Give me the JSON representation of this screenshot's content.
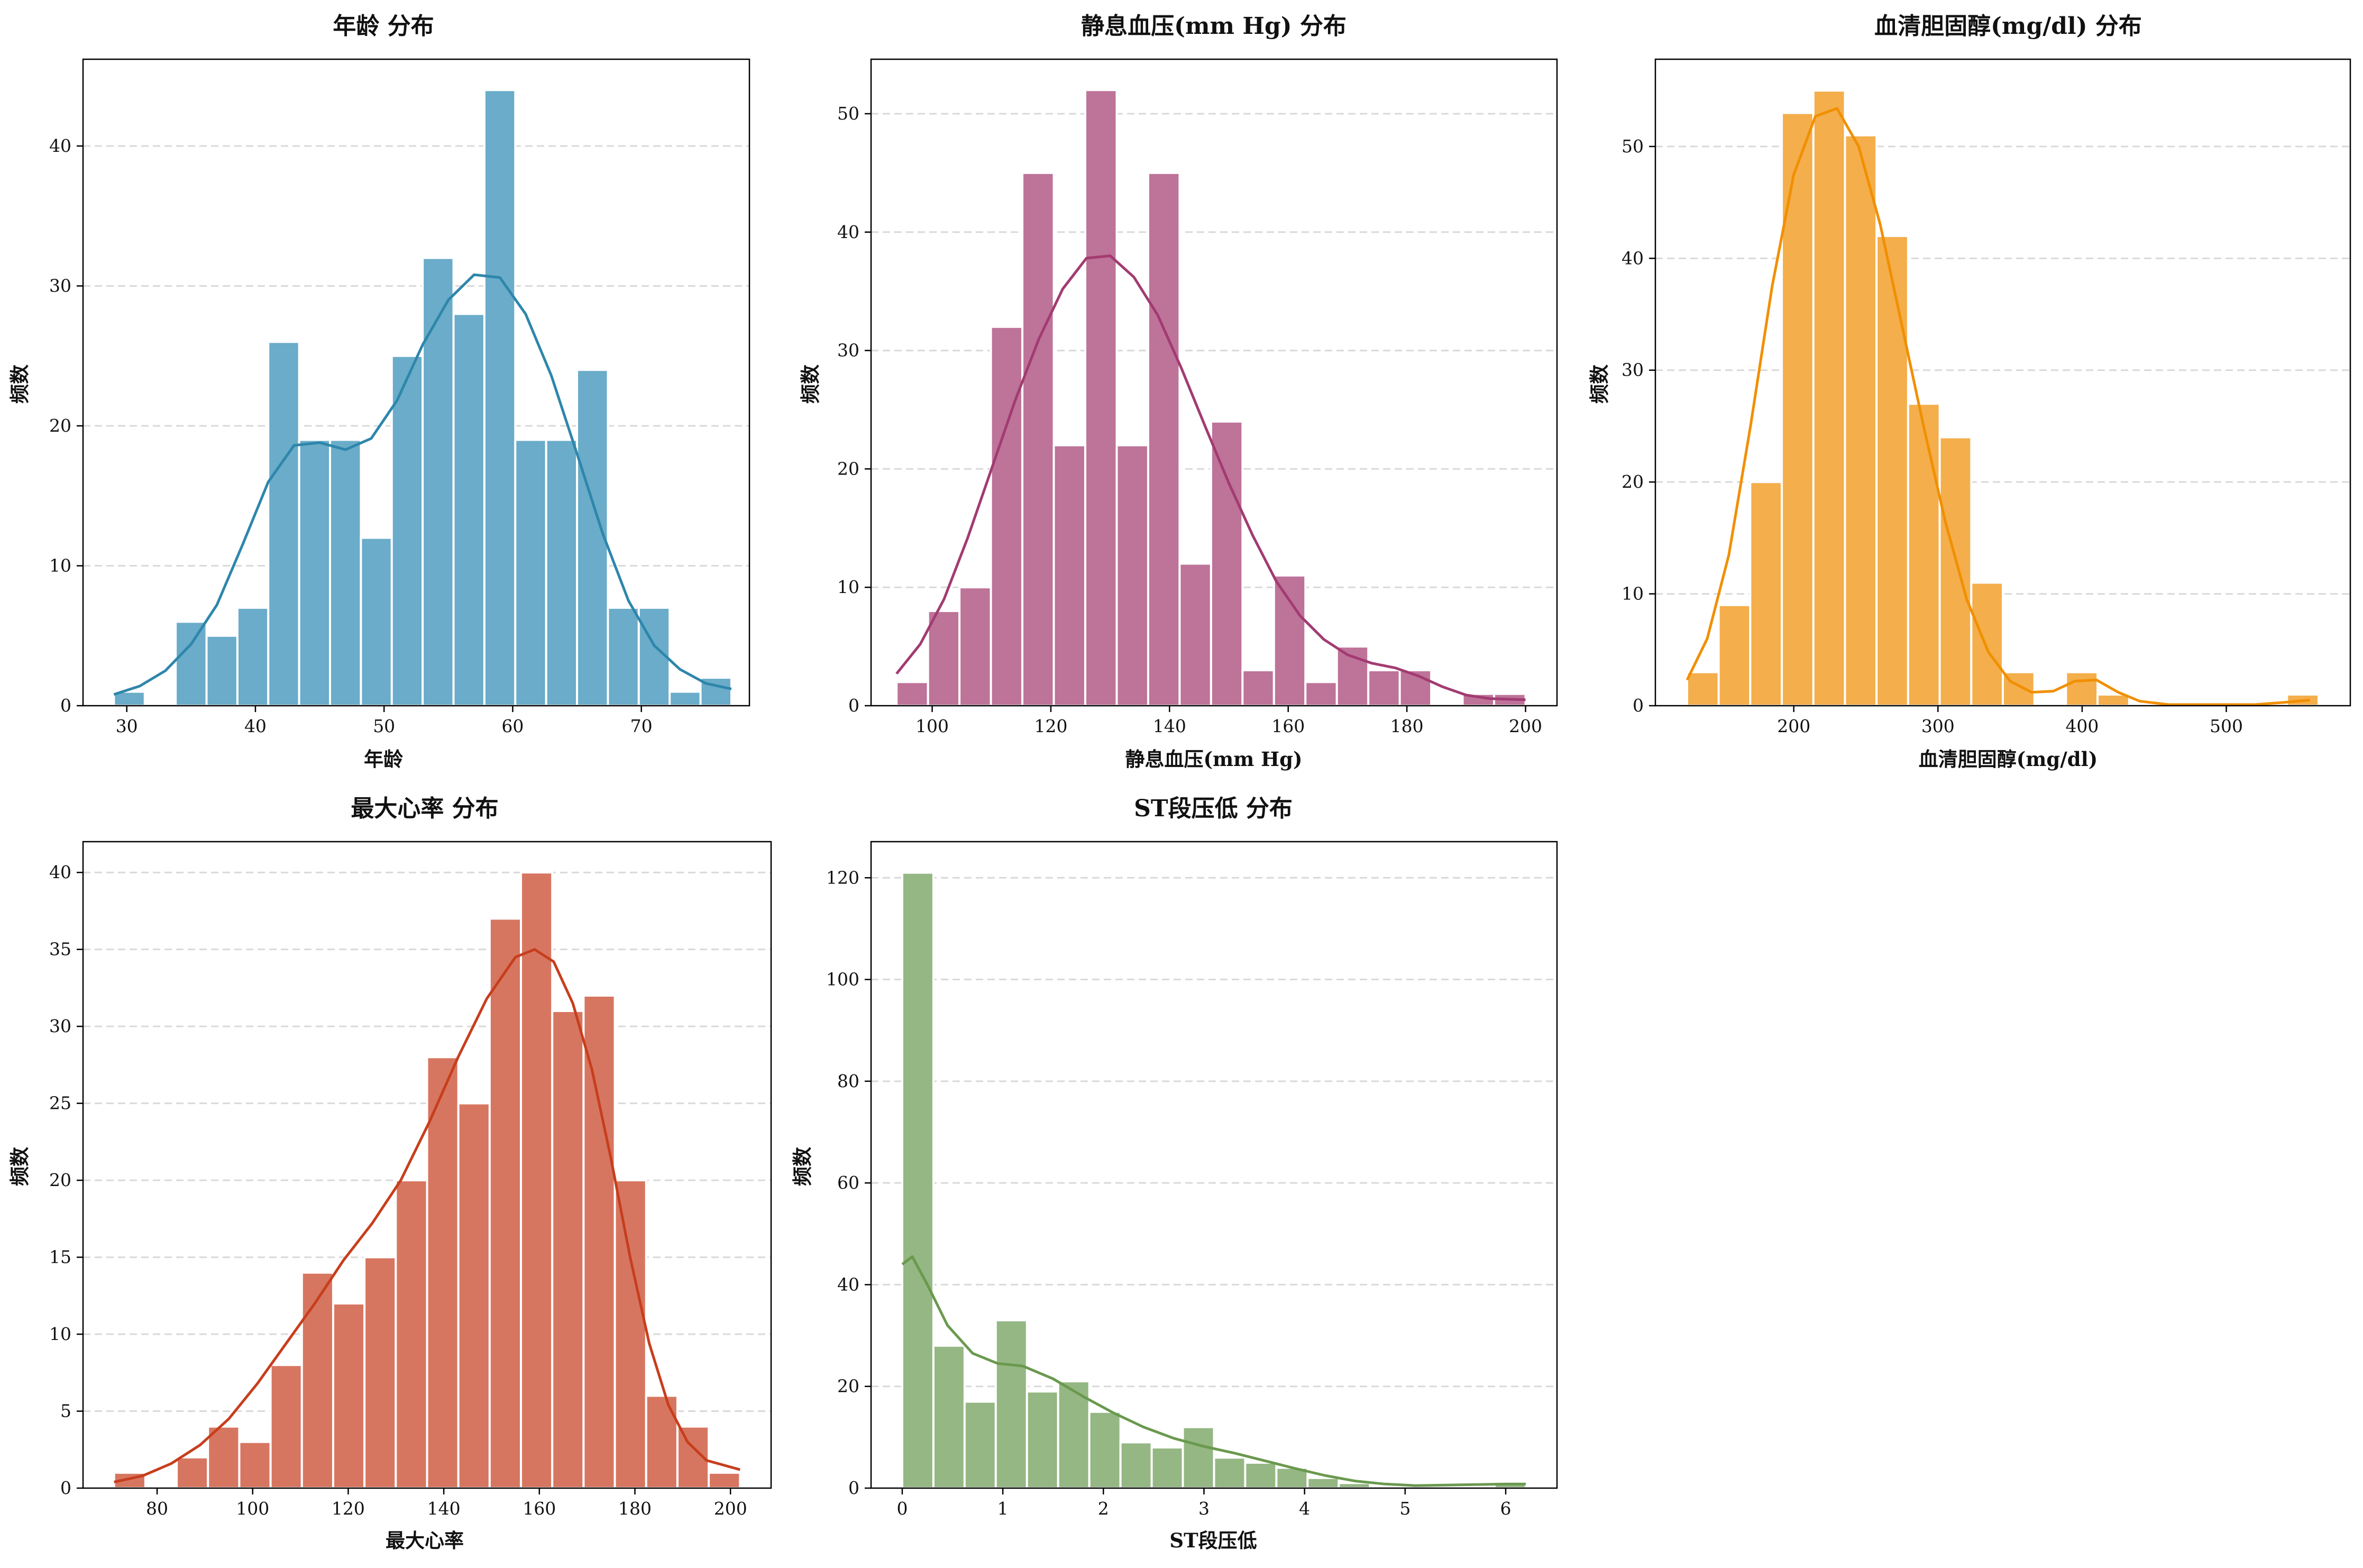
{
  "chart_data": [
    {
      "type": "histogram",
      "title": "年龄 分布",
      "xlabel": "年龄",
      "ylabel": "频数",
      "color": "#2E86AB",
      "bar_color": "#6AACC9",
      "xlim": [
        26.6,
        78.4
      ],
      "ylim": [
        0,
        46.2
      ],
      "xticks": [
        30,
        40,
        50,
        60,
        70
      ],
      "xtick_labels": [
        "30",
        "40",
        "50",
        "60",
        "70"
      ],
      "yticks": [
        0,
        10,
        20,
        30,
        40
      ],
      "ytick_labels": [
        "0",
        "10",
        "20",
        "30",
        "40"
      ],
      "bin_start": 29,
      "bin_width": 2.4,
      "counts": [
        1,
        0,
        6,
        5,
        7,
        26,
        19,
        19,
        12,
        25,
        32,
        28,
        44,
        19,
        19,
        24,
        7,
        7,
        1,
        2
      ],
      "kde": {
        "x": [
          29,
          31,
          33,
          35,
          37,
          39,
          41,
          43,
          45,
          47,
          49,
          51,
          53,
          55,
          57,
          59,
          61,
          63,
          65,
          67,
          69,
          71,
          73,
          75,
          77
        ],
        "y": [
          0.8,
          1.4,
          2.5,
          4.4,
          7.2,
          11.5,
          16.0,
          18.6,
          18.8,
          18.3,
          19.1,
          21.8,
          25.8,
          29.0,
          30.8,
          30.6,
          28.0,
          23.6,
          18.0,
          12.3,
          7.5,
          4.3,
          2.6,
          1.6,
          1.2
        ]
      }
    },
    {
      "type": "histogram",
      "title": "静息血压(mm Hg) 分布",
      "xlabel": "静息血压(mm Hg)",
      "ylabel": "频数",
      "color": "#A23B72",
      "bar_color": "#BE7399",
      "xlim": [
        89.7,
        205.3
      ],
      "ylim": [
        0,
        54.6
      ],
      "xticks": [
        100,
        120,
        140,
        160,
        180,
        200
      ],
      "xtick_labels": [
        "100",
        "120",
        "140",
        "160",
        "180",
        "200"
      ],
      "yticks": [
        0,
        10,
        20,
        30,
        40,
        50
      ],
      "ytick_labels": [
        "0",
        "10",
        "20",
        "30",
        "40",
        "50"
      ],
      "bin_start": 94,
      "bin_width": 5.3,
      "counts": [
        2,
        8,
        10,
        32,
        45,
        22,
        52,
        22,
        45,
        12,
        24,
        3,
        11,
        2,
        5,
        3,
        3,
        0,
        1,
        1
      ],
      "kde": {
        "x": [
          94,
          98,
          102,
          106,
          110,
          114,
          118,
          122,
          126,
          130,
          134,
          138,
          142,
          146,
          150,
          154,
          158,
          162,
          166,
          170,
          174,
          178,
          182,
          186,
          190,
          194,
          200
        ],
        "y": [
          2.7,
          5.2,
          9.0,
          14.2,
          20.0,
          25.8,
          31.0,
          35.2,
          37.8,
          38.0,
          36.2,
          33.0,
          28.5,
          23.6,
          18.8,
          14.4,
          10.5,
          7.6,
          5.6,
          4.3,
          3.6,
          3.2,
          2.5,
          1.6,
          0.9,
          0.6,
          0.5
        ]
      }
    },
    {
      "type": "histogram",
      "title": "血清胆固醇(mg/dl) 分布",
      "xlabel": "血清胆固醇(mg/dl)",
      "ylabel": "频数",
      "color": "#F18F01",
      "bar_color": "#F4AE4B",
      "xlim": [
        104,
        586
      ],
      "ylim": [
        0,
        57.8
      ],
      "xticks": [
        200,
        300,
        400,
        500
      ],
      "xtick_labels": [
        "200",
        "300",
        "400",
        "500"
      ],
      "yticks": [
        0,
        10,
        20,
        30,
        40,
        50
      ],
      "ytick_labels": [
        "0",
        "10",
        "20",
        "30",
        "40",
        "50"
      ],
      "bin_start": 126,
      "bin_width": 21.9,
      "counts": [
        3,
        9,
        20,
        53,
        55,
        51,
        42,
        27,
        24,
        11,
        3,
        0,
        3,
        1,
        0,
        0,
        0,
        0,
        0,
        1
      ],
      "kde": {
        "x": [
          126,
          140,
          155,
          170,
          185,
          200,
          215,
          230,
          245,
          260,
          275,
          290,
          305,
          320,
          335,
          350,
          365,
          380,
          395,
          410,
          425,
          440,
          460,
          480,
          500,
          520,
          540,
          558
        ],
        "y": [
          2.3,
          6.0,
          13.5,
          25.0,
          37.5,
          47.5,
          52.7,
          53.4,
          50.0,
          43.0,
          34.0,
          25.0,
          16.5,
          9.5,
          4.8,
          2.2,
          1.2,
          1.3,
          2.2,
          2.3,
          1.2,
          0.4,
          0.1,
          0.1,
          0.1,
          0.1,
          0.3,
          0.5
        ]
      }
    },
    {
      "type": "histogram",
      "title": "最大心率 分布",
      "xlabel": "最大心率",
      "ylabel": "频数",
      "color": "#C73E1D",
      "bar_color": "#D77660",
      "xlim": [
        64.5,
        208.5
      ],
      "ylim": [
        0,
        42
      ],
      "xticks": [
        80,
        100,
        120,
        140,
        160,
        180,
        200
      ],
      "xtick_labels": [
        "80",
        "100",
        "120",
        "140",
        "160",
        "180",
        "200"
      ],
      "yticks": [
        0,
        5,
        10,
        15,
        20,
        25,
        30,
        35,
        40
      ],
      "ytick_labels": [
        "0",
        "5",
        "10",
        "15",
        "20",
        "25",
        "30",
        "35",
        "40"
      ],
      "bin_start": 71,
      "bin_width": 6.55,
      "counts": [
        1,
        0,
        2,
        4,
        3,
        8,
        14,
        12,
        15,
        20,
        28,
        25,
        37,
        40,
        31,
        32,
        20,
        6,
        4,
        1
      ],
      "kde": {
        "x": [
          71,
          77,
          83,
          89,
          95,
          101,
          107,
          113,
          119,
          125,
          131,
          137,
          143,
          149,
          155,
          159,
          163,
          167,
          171,
          175,
          179,
          183,
          187,
          191,
          195,
          202
        ],
        "y": [
          0.4,
          0.8,
          1.6,
          2.8,
          4.5,
          6.8,
          9.4,
          12.0,
          14.8,
          17.2,
          20.0,
          23.8,
          28.0,
          31.8,
          34.5,
          35.0,
          34.2,
          31.5,
          27.2,
          21.4,
          15.0,
          9.4,
          5.4,
          3.0,
          1.8,
          1.2
        ]
      }
    },
    {
      "type": "histogram",
      "title": "ST段压低 分布",
      "xlabel": "ST段压低",
      "ylabel": "频数",
      "color": "#6A994E",
      "bar_color": "#94B783",
      "xlim": [
        -0.31,
        6.51
      ],
      "ylim": [
        0,
        127.1
      ],
      "xticks": [
        0,
        1,
        2,
        3,
        4,
        5,
        6
      ],
      "xtick_labels": [
        "0",
        "1",
        "2",
        "3",
        "4",
        "5",
        "6"
      ],
      "yticks": [
        0,
        20,
        40,
        60,
        80,
        100,
        120
      ],
      "ytick_labels": [
        "0",
        "20",
        "40",
        "60",
        "80",
        "100",
        "120"
      ],
      "bin_start": 0,
      "bin_width": 0.31,
      "counts": [
        121,
        28,
        17,
        33,
        19,
        21,
        15,
        9,
        8,
        12,
        6,
        5,
        4,
        2,
        1,
        0,
        0,
        0,
        0,
        1
      ],
      "kde": {
        "x": [
          0,
          0.1,
          0.25,
          0.45,
          0.7,
          0.95,
          1.2,
          1.5,
          1.8,
          2.1,
          2.4,
          2.7,
          3.0,
          3.3,
          3.6,
          3.9,
          4.2,
          4.5,
          4.8,
          5.1,
          5.4,
          5.7,
          6.0,
          6.2
        ],
        "y": [
          44,
          45.5,
          40,
          32,
          26.5,
          24.5,
          24.0,
          21.5,
          18.0,
          14.8,
          12.0,
          9.8,
          8.2,
          6.9,
          5.4,
          3.9,
          2.5,
          1.4,
          0.8,
          0.5,
          0.6,
          0.7,
          0.8,
          0.8
        ]
      }
    }
  ]
}
